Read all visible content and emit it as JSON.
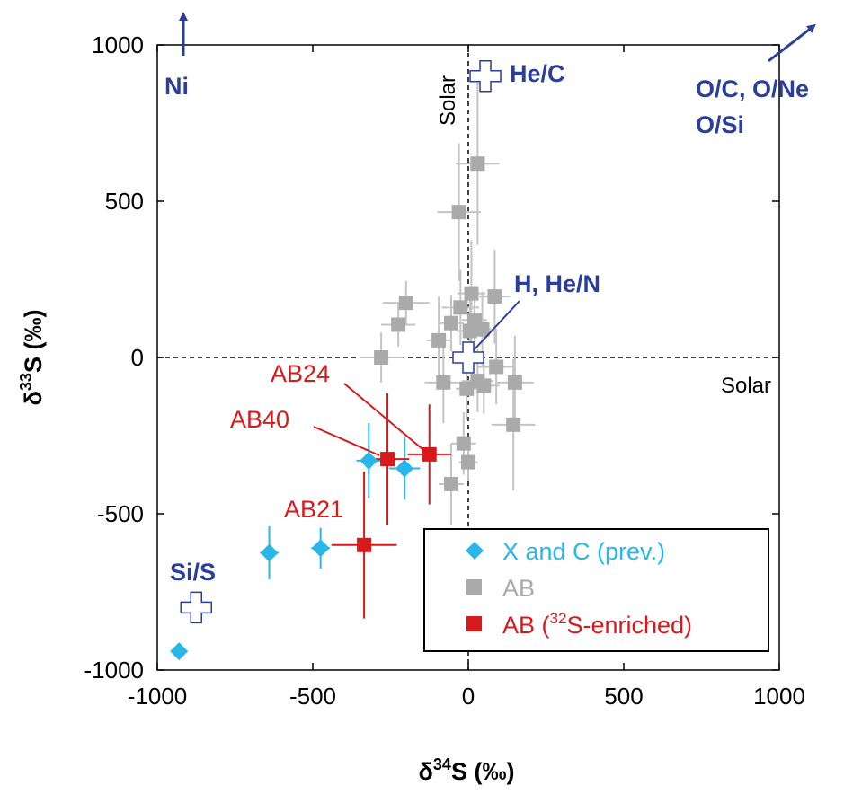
{
  "chart_data": {
    "type": "scatter",
    "xlabel": {
      "symbol": "δ",
      "sup": "34",
      "rest": "S (‰)"
    },
    "ylabel": {
      "symbol": "δ",
      "sup": "33",
      "rest": "S (‰)"
    },
    "xlim": [
      -1000,
      1000
    ],
    "ylim": [
      -1000,
      1000
    ],
    "xticks": [
      -1000,
      -500,
      0,
      500,
      1000
    ],
    "yticks": [
      -1000,
      -500,
      0,
      500,
      1000
    ],
    "xtick_labels": [
      "-1000",
      "-500",
      "0",
      "500",
      "1000"
    ],
    "ytick_labels": [
      "-1000",
      "-500",
      "0",
      "500",
      "1000"
    ],
    "reference_lines": {
      "x": 0,
      "y": 0,
      "label": "Solar"
    },
    "colors": {
      "x_and_c": "#29b6e8",
      "ab": "#aaaaaa",
      "ab_enriched": "#d7191c",
      "model": "#2a3f9c"
    },
    "series": [
      {
        "name": "X and C (prev.)",
        "marker": "diamond",
        "points": [
          {
            "x": -930,
            "y": -940,
            "xerr": 0,
            "yerr": 0
          },
          {
            "x": -640,
            "y": -625,
            "xerr": 30,
            "yerr": 85
          },
          {
            "x": -475,
            "y": -610,
            "xerr": 30,
            "yerr": 65
          },
          {
            "x": -320,
            "y": -330,
            "xerr": 40,
            "yerr": 120
          },
          {
            "x": -205,
            "y": -355,
            "xerr": 50,
            "yerr": 100
          }
        ]
      },
      {
        "name": "AB",
        "marker": "square",
        "points": [
          {
            "x": -280,
            "y": 0,
            "xerr": 70,
            "yerr": 80
          },
          {
            "x": -225,
            "y": 105,
            "xerr": 55,
            "yerr": 70
          },
          {
            "x": -200,
            "y": 175,
            "xerr": 75,
            "yerr": 70
          },
          {
            "x": -95,
            "y": 55,
            "xerr": 40,
            "yerr": 140
          },
          {
            "x": -80,
            "y": -80,
            "xerr": 60,
            "yerr": 130
          },
          {
            "x": -55,
            "y": 110,
            "xerr": 40,
            "yerr": 90
          },
          {
            "x": -55,
            "y": -405,
            "xerr": 40,
            "yerr": 130
          },
          {
            "x": -30,
            "y": 465,
            "xerr": 70,
            "yerr": 220
          },
          {
            "x": -25,
            "y": 160,
            "xerr": 60,
            "yerr": 120
          },
          {
            "x": -15,
            "y": -275,
            "xerr": 40,
            "yerr": 100
          },
          {
            "x": -5,
            "y": -100,
            "xerr": 35,
            "yerr": 100
          },
          {
            "x": 0,
            "y": -335,
            "xerr": 30,
            "yerr": 60
          },
          {
            "x": 5,
            "y": 85,
            "xerr": 45,
            "yerr": 110
          },
          {
            "x": 10,
            "y": 205,
            "xerr": 45,
            "yerr": 170
          },
          {
            "x": 20,
            "y": 120,
            "xerr": 40,
            "yerr": 110
          },
          {
            "x": 30,
            "y": 620,
            "xerr": 70,
            "yerr": 260
          },
          {
            "x": 30,
            "y": -75,
            "xerr": 50,
            "yerr": 100
          },
          {
            "x": 45,
            "y": 90,
            "xerr": 45,
            "yerr": 120
          },
          {
            "x": 50,
            "y": -90,
            "xerr": 50,
            "yerr": 90
          },
          {
            "x": 85,
            "y": 195,
            "xerr": 50,
            "yerr": 150
          },
          {
            "x": 90,
            "y": -30,
            "xerr": 60,
            "yerr": 120
          },
          {
            "x": 145,
            "y": -215,
            "xerr": 70,
            "yerr": 210
          },
          {
            "x": 150,
            "y": -80,
            "xerr": 60,
            "yerr": 150
          }
        ]
      },
      {
        "name": "AB (32S-enriched)",
        "marker": "square",
        "points": [
          {
            "x": -335,
            "y": -600,
            "xerr": 105,
            "yerr": 235
          },
          {
            "x": -260,
            "y": -325,
            "xerr": 70,
            "yerr": 210
          },
          {
            "x": -125,
            "y": -310,
            "xerr": 70,
            "yerr": 160
          }
        ]
      }
    ],
    "model_points": [
      {
        "label": "He/C",
        "x": 55,
        "y": 900
      },
      {
        "label": "H, He/N",
        "x": 0,
        "y": 0
      },
      {
        "label": "Si/S",
        "x": -875,
        "y": -800
      }
    ],
    "arrows": [
      {
        "label": "Ni",
        "direction": "up"
      },
      {
        "label": "O/C, O/Ne",
        "label2": "O/Si",
        "direction": "up-right"
      }
    ],
    "annotations": [
      "AB24",
      "AB40",
      "AB21"
    ],
    "legend": {
      "placement": "bottom-right",
      "entries": [
        {
          "text": "X and C (prev.)",
          "pre": "X and C (prev.)",
          "sup": "",
          "post": ""
        },
        {
          "text": "AB",
          "pre": "AB",
          "sup": "",
          "post": ""
        },
        {
          "text": "AB (32S-enriched)",
          "pre": "AB (",
          "sup": "32",
          "post": "S-enriched)"
        }
      ]
    }
  }
}
